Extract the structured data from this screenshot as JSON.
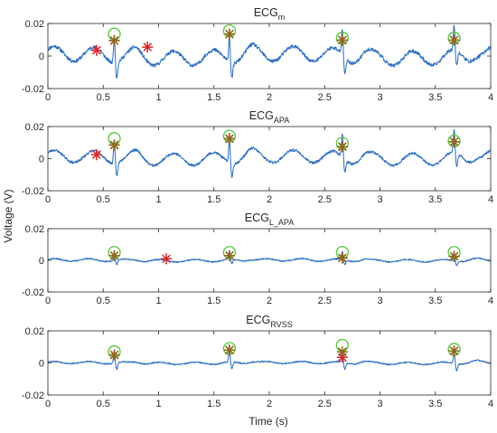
{
  "figure": {
    "ylabel": "Voltage (V)",
    "xlabel": "Time (s)"
  },
  "chart_data": [
    {
      "type": "line",
      "title": "ECG",
      "title_subscript": "m",
      "xlim": [
        0,
        4
      ],
      "ylim": [
        -0.02,
        0.02
      ],
      "x_ticks": [
        0,
        0.5,
        1,
        1.5,
        2,
        2.5,
        3,
        3.5,
        4
      ],
      "x_tick_labels": [
        "0",
        "0.5",
        "1",
        "1.5",
        "2",
        "2.5",
        "3",
        "3.5",
        "4"
      ],
      "y_ticks": [
        -0.02,
        0,
        0.02
      ],
      "y_tick_labels": [
        "-0.02",
        "0",
        "0.02"
      ],
      "show_x_label": false,
      "signal": {
        "color": "#2f6fc0",
        "r_peaks": [
          0.6,
          1.64,
          2.66,
          3.67
        ],
        "baseline": 0.0,
        "wave_amp": 0.0045,
        "wave_period": 0.36,
        "drift_amp": 0.0015,
        "peak_amp": 0.016,
        "noise": 0.0011,
        "seed": 11
      },
      "marker_circles": {
        "color": "#55c43a",
        "points": [
          [
            0.6,
            0.0135
          ],
          [
            1.64,
            0.0155
          ],
          [
            2.66,
            0.011
          ],
          [
            3.67,
            0.011
          ]
        ]
      },
      "marker_stars_red": {
        "color": "#d62728",
        "points": [
          [
            0.44,
            0.0035
          ],
          [
            0.6,
            0.0095
          ],
          [
            0.9,
            0.0055
          ],
          [
            1.64,
            0.0135
          ],
          [
            2.66,
            0.0098
          ],
          [
            3.67,
            0.0098
          ]
        ]
      },
      "marker_stars_dark": {
        "color": "#8b6a1f",
        "points": [
          [
            0.6,
            0.0095
          ],
          [
            1.64,
            0.0135
          ],
          [
            2.66,
            0.0098
          ],
          [
            3.67,
            0.0098
          ]
        ]
      }
    },
    {
      "type": "line",
      "title": "ECG",
      "title_subscript": "APA",
      "xlim": [
        0,
        4
      ],
      "ylim": [
        -0.02,
        0.02
      ],
      "x_ticks": [
        0,
        0.5,
        1,
        1.5,
        2,
        2.5,
        3,
        3.5,
        4
      ],
      "x_tick_labels": [
        "0",
        "0.5",
        "1",
        "1.5",
        "2",
        "2.5",
        "3",
        "3.5",
        "4"
      ],
      "y_ticks": [
        -0.02,
        0,
        0.02
      ],
      "y_tick_labels": [
        "-0.02",
        "0",
        "0.02"
      ],
      "show_x_label": false,
      "signal": {
        "color": "#2f6fc0",
        "r_peaks": [
          0.6,
          1.64,
          2.66,
          3.67
        ],
        "baseline": 0.0005,
        "wave_amp": 0.0038,
        "wave_period": 0.36,
        "drift_amp": 0.001,
        "peak_amp": 0.015,
        "noise": 0.0008,
        "seed": 23
      },
      "marker_circles": {
        "color": "#55c43a",
        "points": [
          [
            0.6,
            0.0125
          ],
          [
            1.64,
            0.014
          ],
          [
            2.66,
            0.0095
          ],
          [
            3.67,
            0.011
          ]
        ]
      },
      "marker_stars_red": {
        "color": "#d62728",
        "points": [
          [
            0.44,
            0.0025
          ],
          [
            0.6,
            0.0085
          ],
          [
            1.64,
            0.0125
          ],
          [
            2.66,
            0.0075
          ],
          [
            3.67,
            0.0105
          ]
        ]
      },
      "marker_stars_dark": {
        "color": "#8b6a1f",
        "points": [
          [
            0.6,
            0.0085
          ],
          [
            1.64,
            0.0125
          ],
          [
            2.66,
            0.0075
          ],
          [
            3.67,
            0.0105
          ]
        ]
      }
    },
    {
      "type": "line",
      "title": "ECG",
      "title_subscript": "L_APA",
      "xlim": [
        0,
        4
      ],
      "ylim": [
        -0.02,
        0.02
      ],
      "x_ticks": [
        0,
        0.5,
        1,
        1.5,
        2,
        2.5,
        3,
        3.5,
        4
      ],
      "x_tick_labels": [
        "0",
        "0.5",
        "1",
        "1.5",
        "2",
        "2.5",
        "3",
        "3.5",
        "4"
      ],
      "y_ticks": [
        -0.02,
        0,
        0.02
      ],
      "y_tick_labels": [
        "-0.02",
        "0",
        "0.02"
      ],
      "show_x_label": false,
      "signal": {
        "color": "#2f6fc0",
        "r_peaks": [
          0.6,
          1.64,
          2.66,
          3.67
        ],
        "baseline": 0.0,
        "wave_amp": 0.0008,
        "wave_period": 0.32,
        "drift_amp": 0.0003,
        "peak_amp": 0.005,
        "noise": 0.0004,
        "seed": 37
      },
      "marker_circles": {
        "color": "#55c43a",
        "points": [
          [
            0.6,
            0.005
          ],
          [
            1.64,
            0.005
          ],
          [
            2.66,
            0.005
          ],
          [
            3.67,
            0.005
          ]
        ]
      },
      "marker_stars_red": {
        "color": "#d62728",
        "points": [
          [
            0.6,
            0.003
          ],
          [
            1.07,
            0.001
          ],
          [
            1.64,
            0.003
          ],
          [
            2.66,
            0.0015
          ],
          [
            3.67,
            0.0025
          ]
        ]
      },
      "marker_stars_dark": {
        "color": "#8b6a1f",
        "points": [
          [
            0.6,
            0.003
          ],
          [
            1.64,
            0.003
          ],
          [
            2.66,
            0.0015
          ],
          [
            3.67,
            0.0025
          ]
        ]
      }
    },
    {
      "type": "line",
      "title": "ECG",
      "title_subscript": "RVSS",
      "xlim": [
        0,
        4
      ],
      "ylim": [
        -0.02,
        0.02
      ],
      "x_ticks": [
        0,
        0.5,
        1,
        1.5,
        2,
        2.5,
        3,
        3.5,
        4
      ],
      "x_tick_labels": [
        "0",
        "0.5",
        "1",
        "1.5",
        "2",
        "2.5",
        "3",
        "3.5",
        "4"
      ],
      "y_ticks": [
        -0.02,
        0,
        0.02
      ],
      "y_tick_labels": [
        "-0.02",
        "0",
        "0.02"
      ],
      "show_x_label": true,
      "signal": {
        "color": "#2f6fc0",
        "r_peaks": [
          0.6,
          1.64,
          2.66,
          3.67
        ],
        "baseline": 0.0,
        "wave_amp": 0.0007,
        "wave_period": 0.32,
        "drift_amp": 0.0003,
        "peak_amp": 0.0075,
        "noise": 0.0004,
        "seed": 53
      },
      "marker_circles": {
        "color": "#55c43a",
        "points": [
          [
            0.6,
            0.007
          ],
          [
            1.64,
            0.009
          ],
          [
            2.66,
            0.011
          ],
          [
            3.67,
            0.0085
          ]
        ]
      },
      "marker_stars_red": {
        "color": "#d62728",
        "points": [
          [
            0.6,
            0.005
          ],
          [
            1.64,
            0.008
          ],
          [
            2.66,
            0.0035
          ],
          [
            3.67,
            0.0075
          ]
        ]
      },
      "marker_stars_dark": {
        "color": "#8b6a1f",
        "points": [
          [
            0.6,
            0.005
          ],
          [
            1.64,
            0.008
          ],
          [
            2.66,
            0.007
          ],
          [
            3.67,
            0.0075
          ]
        ]
      }
    }
  ]
}
